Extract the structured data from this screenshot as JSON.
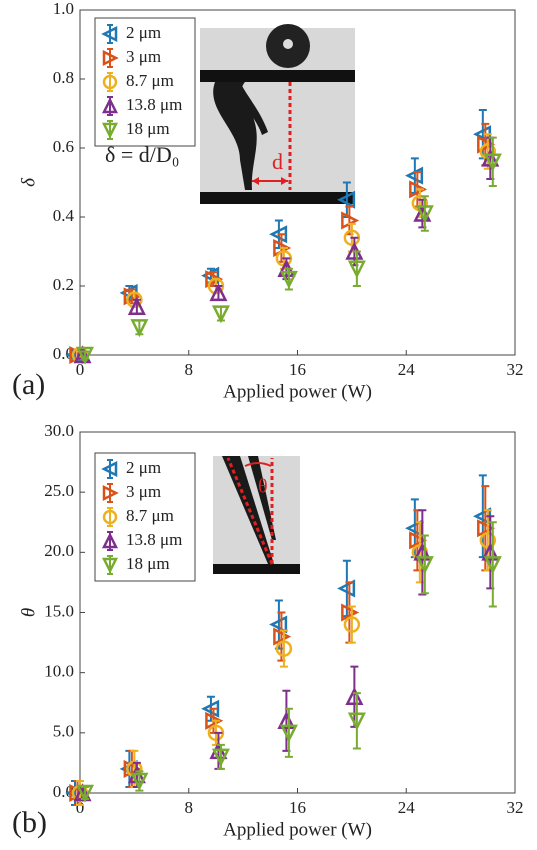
{
  "chart_data": [
    {
      "type": "errorbar",
      "panel_label": "(a)",
      "x_label": "Applied power (W)",
      "y_label": "δ",
      "x": [
        0,
        4,
        10,
        15,
        20,
        25,
        30
      ],
      "xlim": [
        0,
        32
      ],
      "xticks": [
        0,
        8,
        16,
        24,
        32
      ],
      "ylim": [
        0,
        1
      ],
      "yticks": [
        {
          "value": 0,
          "label": "0.0"
        },
        0.2,
        0.4,
        0.6,
        0.8,
        {
          "value": 1,
          "label": "1.0"
        }
      ],
      "annotations": [
        "d",
        "δ = d/D₀"
      ],
      "series": [
        {
          "name": "2 μm",
          "color": "#1f77b4",
          "marker": "triangle-left",
          "values": [
            0,
            0.18,
            0.23,
            0.35,
            0.45,
            0.52,
            0.64
          ],
          "errors": [
            0.01,
            0.02,
            0.02,
            0.04,
            0.05,
            0.05,
            0.07
          ]
        },
        {
          "name": "3 μm",
          "color": "#d95319",
          "marker": "triangle-right",
          "values": [
            0,
            0.17,
            0.22,
            0.31,
            0.39,
            0.48,
            0.61
          ],
          "errors": [
            0.01,
            0.02,
            0.02,
            0.04,
            0.04,
            0.05,
            0.06
          ]
        },
        {
          "name": "8.7 μm",
          "color": "#edb120",
          "marker": "circle",
          "values": [
            0,
            0.16,
            0.2,
            0.28,
            0.34,
            0.44,
            0.59
          ],
          "errors": [
            0.01,
            0.02,
            0.02,
            0.03,
            0.04,
            0.04,
            0.05
          ]
        },
        {
          "name": "13.8 μm",
          "color": "#7e2f8e",
          "marker": "triangle-up",
          "values": [
            0,
            0.14,
            0.18,
            0.25,
            0.3,
            0.41,
            0.57
          ],
          "errors": [
            0.01,
            0.02,
            0.02,
            0.03,
            0.04,
            0.04,
            0.06
          ]
        },
        {
          "name": "18 μm",
          "color": "#77ac30",
          "marker": "triangle-down",
          "values": [
            0,
            0.08,
            0.12,
            0.22,
            0.25,
            0.41,
            0.56
          ],
          "errors": [
            0.01,
            0.02,
            0.02,
            0.03,
            0.05,
            0.05,
            0.07
          ]
        }
      ]
    },
    {
      "type": "errorbar",
      "panel_label": "(b)",
      "x_label": "Applied power (W)",
      "y_label": "θ",
      "x": [
        0,
        4,
        10,
        15,
        20,
        25,
        30
      ],
      "xlim": [
        0,
        32
      ],
      "xticks": [
        0,
        8,
        16,
        24,
        32
      ],
      "ylim": [
        0,
        30
      ],
      "yticks": [
        {
          "value": 0,
          "label": "0.0"
        },
        {
          "value": 5,
          "label": "5.0"
        },
        {
          "value": 10,
          "label": "10.0"
        },
        {
          "value": 15,
          "label": "15.0"
        },
        {
          "value": 20,
          "label": "20.0"
        },
        {
          "value": 25,
          "label": "25.0"
        },
        {
          "value": 30,
          "label": "30.0"
        }
      ],
      "annotations": [
        "θ"
      ],
      "series": [
        {
          "name": "2 μm",
          "color": "#1f77b4",
          "marker": "triangle-left",
          "values": [
            0,
            2,
            7,
            14,
            17,
            22,
            23
          ],
          "errors": [
            1,
            1.5,
            1,
            2,
            2.3,
            2.4,
            3.4
          ]
        },
        {
          "name": "3 μm",
          "color": "#d95319",
          "marker": "triangle-right",
          "values": [
            0,
            2,
            6,
            13,
            15,
            21,
            22
          ],
          "errors": [
            1,
            1.5,
            1,
            2,
            2.5,
            2.5,
            3.5
          ]
        },
        {
          "name": "8.7 μm",
          "color": "#edb120",
          "marker": "circle",
          "values": [
            0,
            2,
            5,
            12,
            14,
            20,
            21
          ],
          "errors": [
            1,
            1.5,
            1,
            1.5,
            1.5,
            2.5,
            2.5
          ]
        },
        {
          "name": "13.8 μm",
          "color": "#7e2f8e",
          "marker": "triangle-up",
          "values": [
            0,
            1.5,
            3.5,
            6,
            8,
            20,
            20
          ],
          "errors": [
            0.5,
            1,
            1.5,
            2.5,
            2.5,
            3.5,
            3
          ]
        },
        {
          "name": "18 μm",
          "color": "#77ac30",
          "marker": "triangle-down",
          "values": [
            0,
            1,
            3,
            5,
            6,
            19,
            19
          ],
          "errors": [
            0.5,
            0.8,
            1,
            2,
            2.3,
            2.4,
            3.5
          ]
        }
      ]
    }
  ]
}
